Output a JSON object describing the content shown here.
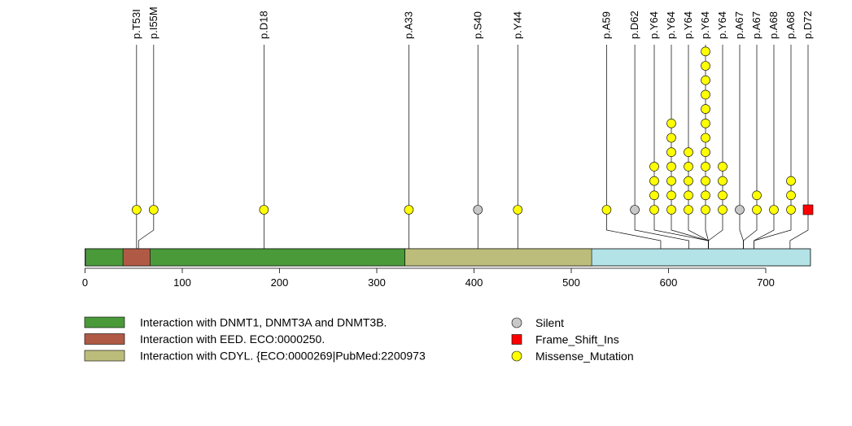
{
  "chart_data": {
    "type": "lollipop",
    "xlim": [
      0,
      750
    ],
    "x_ticks": [
      0,
      100,
      200,
      300,
      400,
      500,
      600,
      700
    ],
    "x_tick_labels": [
      "0",
      "100",
      "200",
      "300",
      "400",
      "500",
      "600",
      "700"
    ],
    "protein_length": 746,
    "domains": [
      {
        "name": "Interaction with DNMT1, DNMT3A and DNMT3B.",
        "start": 1,
        "end": 329,
        "color": "#4a9a3a"
      },
      {
        "name": "Interaction with EED. ECO:0000250.",
        "start": 39,
        "end": 67,
        "color": "#b05a45"
      },
      {
        "name": "Interaction with CDYL. {ECO:0000269|PubMed:2200973",
        "start": 329,
        "end": 521,
        "color": "#bdbd7b"
      }
    ],
    "mutations": [
      {
        "label": "p.T53I",
        "position": 53,
        "count": 1,
        "type": "Missense_Mutation"
      },
      {
        "label": "p.I55M",
        "position": 55,
        "count": 1,
        "type": "Missense_Mutation"
      },
      {
        "label": "p.D18",
        "position": 184,
        "count": 1,
        "type": "Missense_Mutation"
      },
      {
        "label": "p.A33",
        "position": 333,
        "count": 1,
        "type": "Missense_Mutation"
      },
      {
        "label": "p.S40",
        "position": 404,
        "count": 1,
        "type": "Silent"
      },
      {
        "label": "p.Y44",
        "position": 445,
        "count": 1,
        "type": "Missense_Mutation"
      },
      {
        "label": "p.A59",
        "position": 592,
        "count": 1,
        "type": "Missense_Mutation"
      },
      {
        "label": "p.D62",
        "position": 621,
        "count": 1,
        "type": "Silent"
      },
      {
        "label": "p.Y64",
        "position": 641,
        "count": 4,
        "type": "Missense_Mutation"
      },
      {
        "label": "p.Y64",
        "position": 641,
        "count": 7,
        "type": "Missense_Mutation"
      },
      {
        "label": "p.Y64",
        "position": 641,
        "count": 5,
        "type": "Missense_Mutation"
      },
      {
        "label": "p.Y64",
        "position": 641,
        "count": 12,
        "type": "Missense_Mutation"
      },
      {
        "label": "p.Y64",
        "position": 641,
        "count": 4,
        "type": "Missense_Mutation"
      },
      {
        "label": "p.A67",
        "position": 677,
        "count": 1,
        "type": "Silent"
      },
      {
        "label": "p.A67",
        "position": 677,
        "count": 2,
        "type": "Missense_Mutation"
      },
      {
        "label": "p.A68",
        "position": 688,
        "count": 1,
        "type": "Missense_Mutation"
      },
      {
        "label": "p.A68",
        "position": 688,
        "count": 3,
        "type": "Missense_Mutation"
      },
      {
        "label": "p.D72",
        "position": 725,
        "count": 1,
        "type": "Frame_Shift_Ins"
      }
    ],
    "mutation_types": [
      {
        "name": "Silent",
        "color": "#c8c8c8",
        "shape": "circle"
      },
      {
        "name": "Frame_Shift_Ins",
        "color": "#ff0000",
        "shape": "square"
      },
      {
        "name": "Missense_Mutation",
        "color": "#ffff00",
        "shape": "circle"
      }
    ],
    "protein_extension_color": "#b3e3e6",
    "legend_placement": "bottom"
  }
}
